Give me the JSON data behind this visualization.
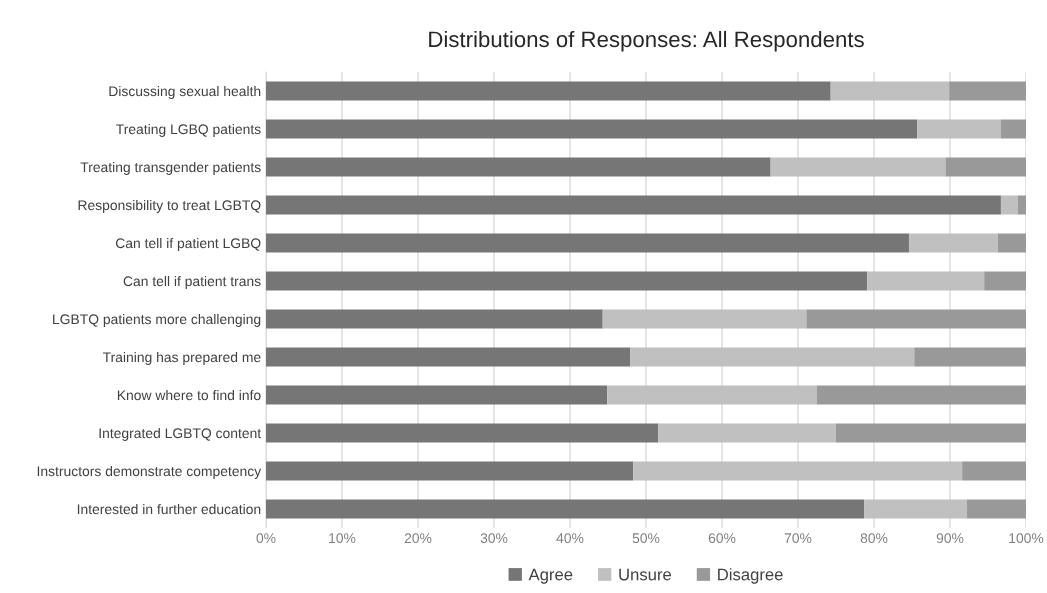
{
  "chart_data": {
    "type": "bar",
    "orientation": "horizontal",
    "stacked": true,
    "title": "Distributions of Responses: All Respondents",
    "categories": [
      "Discussing sexual health",
      "Treating LGBQ patients",
      "Treating transgender patients",
      "Responsibility to treat LGBTQ",
      "Can tell if patient LGBQ",
      "Can tell if patient trans",
      "LGBTQ patients more challenging",
      "Training has prepared me",
      "Know where to find info",
      "Integrated LGBTQ content",
      "Instructors demonstrate competency",
      "Interested in further education"
    ],
    "series": [
      {
        "name": "Agree",
        "color": "#767676",
        "values": [
          74.3,
          85.7,
          66.4,
          96.7,
          84.6,
          79.1,
          44.3,
          47.9,
          44.9,
          51.6,
          48.3,
          78.7
        ]
      },
      {
        "name": "Unsure",
        "color": "#c0c0c0",
        "values": [
          15.6,
          11.0,
          23.0,
          2.2,
          11.7,
          15.4,
          26.8,
          37.4,
          27.6,
          23.4,
          43.3,
          13.5
        ]
      },
      {
        "name": "Disagree",
        "color": "#999999",
        "values": [
          10.1,
          3.3,
          10.6,
          1.1,
          3.7,
          5.5,
          28.9,
          14.7,
          27.5,
          25.0,
          8.4,
          7.8
        ]
      }
    ],
    "xlim": [
      0,
      100
    ],
    "xticks": [
      {
        "value": 0,
        "label": "0%"
      },
      {
        "value": 10,
        "label": "10%"
      },
      {
        "value": 20,
        "label": "20%"
      },
      {
        "value": 30,
        "label": "30%"
      },
      {
        "value": 40,
        "label": "40%"
      },
      {
        "value": 50,
        "label": "50%"
      },
      {
        "value": 60,
        "label": "60%"
      },
      {
        "value": 70,
        "label": "70%"
      },
      {
        "value": 80,
        "label": "80%"
      },
      {
        "value": 90,
        "label": "90%"
      },
      {
        "value": 100,
        "label": "100%"
      }
    ],
    "grid": "x",
    "legend": "bottom"
  }
}
